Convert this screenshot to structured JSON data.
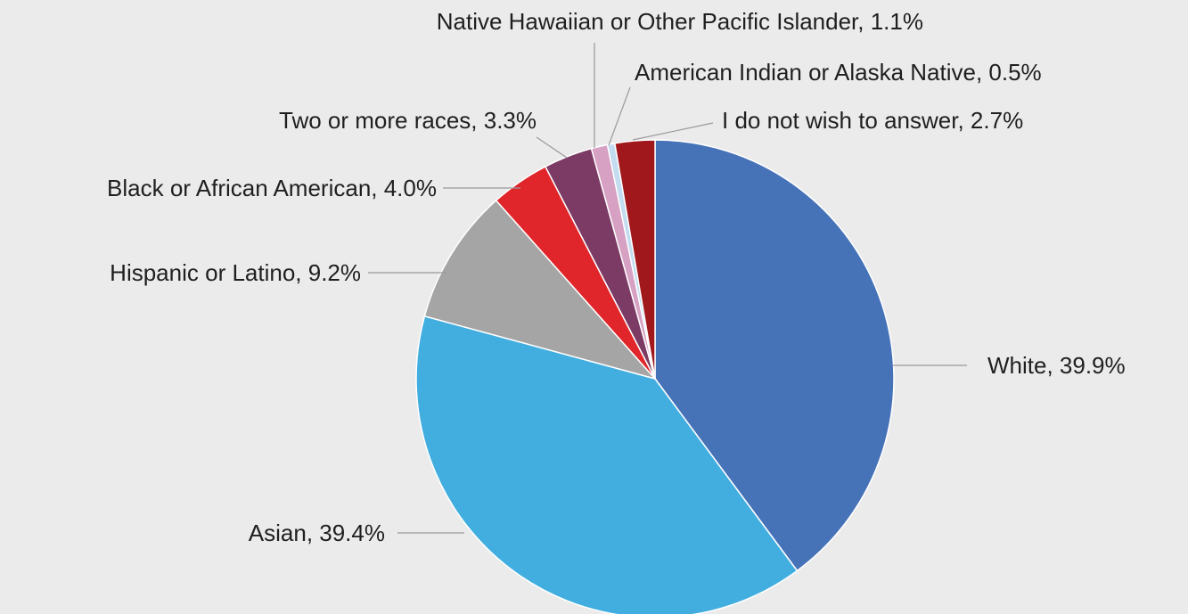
{
  "chart_data": {
    "type": "pie",
    "title": "",
    "start_angle_deg": 0,
    "direction": "clockwise",
    "label_format": "{label}, {pct}%",
    "slices": [
      {
        "label": "White",
        "value": 39.9,
        "color": "#4672b8"
      },
      {
        "label": "Asian",
        "value": 39.4,
        "color": "#42aee0"
      },
      {
        "label": "Hispanic or Latino",
        "value": 9.2,
        "color": "#a5a5a5"
      },
      {
        "label": "Black or African American",
        "value": 4.0,
        "color": "#e0262a"
      },
      {
        "label": "Two or more races",
        "value": 3.3,
        "color": "#7c3b64"
      },
      {
        "label": "Native Hawaiian or Other Pacific Islander",
        "value": 1.1,
        "color": "#d7a1c4"
      },
      {
        "label": "American Indian or Alaska Native",
        "value": 0.5,
        "color": "#c3dcf0"
      },
      {
        "label": "I do not wish to answer",
        "value": 2.7,
        "color": "#a0181c"
      }
    ]
  }
}
